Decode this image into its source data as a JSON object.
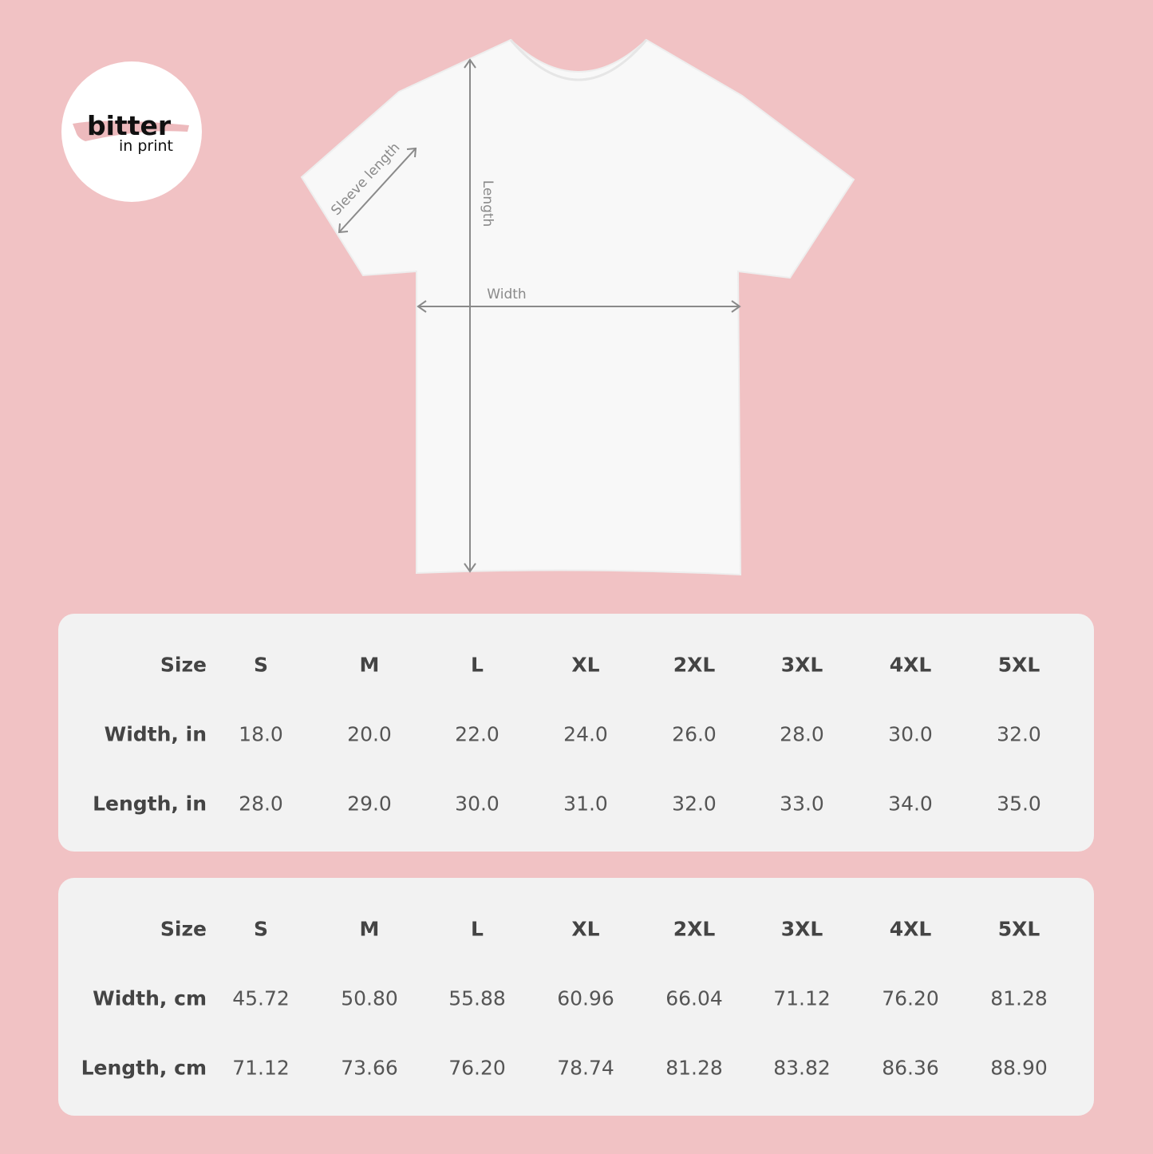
{
  "logo": {
    "brand": "bitter",
    "tagline": "in print",
    "brush_color": "#e8a9ad"
  },
  "diagram": {
    "labels": {
      "sleeve": "Sleeve length",
      "length": "Length",
      "width": "Width"
    },
    "colors": {
      "background": "#f1c2c4",
      "shirt": "#f8f8f8",
      "arrows": "#8a8a8a"
    }
  },
  "tables": [
    {
      "columns": [
        "S",
        "M",
        "L",
        "XL",
        "2XL",
        "3XL",
        "4XL",
        "5XL"
      ],
      "header_label": "Size",
      "rows": [
        {
          "label": "Width, in",
          "values": [
            "18.0",
            "20.0",
            "22.0",
            "24.0",
            "26.0",
            "28.0",
            "30.0",
            "32.0"
          ]
        },
        {
          "label": "Length, in",
          "values": [
            "28.0",
            "29.0",
            "30.0",
            "31.0",
            "32.0",
            "33.0",
            "34.0",
            "35.0"
          ]
        }
      ]
    },
    {
      "columns": [
        "S",
        "M",
        "L",
        "XL",
        "2XL",
        "3XL",
        "4XL",
        "5XL"
      ],
      "header_label": "Size",
      "rows": [
        {
          "label": "Width, cm",
          "values": [
            "45.72",
            "50.80",
            "55.88",
            "60.96",
            "66.04",
            "71.12",
            "76.20",
            "81.28"
          ]
        },
        {
          "label": "Length, cm",
          "values": [
            "71.12",
            "73.66",
            "76.20",
            "78.74",
            "81.28",
            "83.82",
            "86.36",
            "88.90"
          ]
        }
      ]
    }
  ]
}
